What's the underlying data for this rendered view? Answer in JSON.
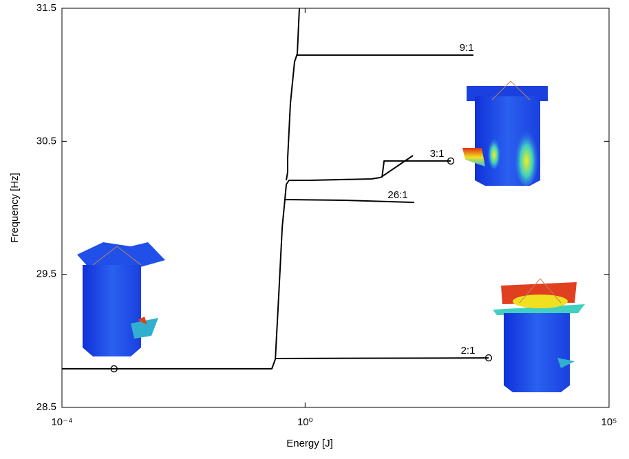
{
  "chart_data": {
    "type": "line",
    "xlabel": "Energy [J]",
    "ylabel": "Frequency [Hz]",
    "xscale": "log",
    "xlim": [
      0.0001,
      100000
    ],
    "ylim": [
      28.5,
      31.5
    ],
    "xticks": [
      {
        "value": 0.0001,
        "label": "10⁻⁴"
      },
      {
        "value": 1,
        "label": "10⁰"
      },
      {
        "value": 100000,
        "label": "10⁵"
      }
    ],
    "yticks": [
      28.5,
      29.5,
      30.5,
      31.5
    ],
    "x": [
      0.0001,
      0.284,
      0.324,
      0.368,
      0.42,
      0.466,
      0.49,
      0.545,
      1.19,
      12.4,
      17.5,
      59.5,
      null,
      18.4,
      19.9,
      249,
      null,
      0.324,
      1045,
      null,
      0.454,
      4.39,
      62.6,
      null,
      0.49,
      0.517,
      0.517,
      0.574,
      0.671,
      0.745,
      0.805,
      null,
      0.745,
      589
    ],
    "series": [
      {
        "color": "#000000",
        "values": [
          28.79,
          28.79,
          28.862,
          29.338,
          29.855,
          30.062,
          30.176,
          30.207,
          30.207,
          30.217,
          30.228,
          30.393,
          null,
          30.228,
          30.352,
          30.352,
          null,
          28.867,
          28.872,
          null,
          30.062,
          30.057,
          30.041,
          null,
          30.207,
          30.269,
          30.372,
          30.786,
          31.097,
          31.159,
          31.5,
          null,
          31.148,
          31.148
        ]
      }
    ],
    "points": {
      "x": [
        0.00072,
        249,
        1045
      ],
      "y": [
        28.79,
        30.352,
        28.872
      ]
    },
    "annotations": [
      "9:1",
      "3:1",
      "26:1",
      "2:1"
    ]
  }
}
